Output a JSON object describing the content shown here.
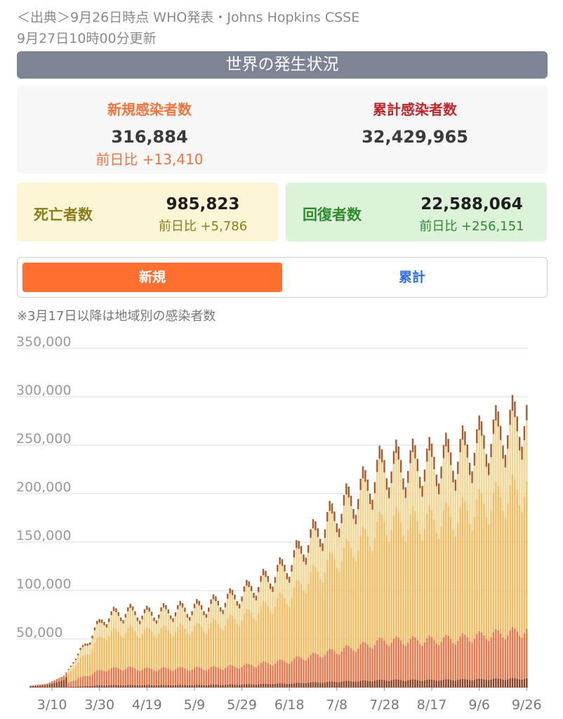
{
  "source": {
    "line1": "＜出典＞9月26日時点 WHO発表・Johns Hopkins CSSE",
    "line2": "9月27日10時00分更新"
  },
  "banner": "世界の発生状況",
  "summary": {
    "new_cases": {
      "label": "新規感染者数",
      "value": "316,884",
      "diff": "前日比 +13,410"
    },
    "total_cases": {
      "label": "累計感染者数",
      "value": "32,429,965"
    },
    "deaths": {
      "label": "死亡者数",
      "value": "985,823",
      "diff": "前日比 +5,786"
    },
    "recovered": {
      "label": "回復者数",
      "value": "22,588,064",
      "diff": "前日比 +256,151"
    }
  },
  "tabs": {
    "new": "新規",
    "cumulative": "累計",
    "active": "new"
  },
  "note": "※3月17日以降は地域別の感染者数",
  "colors": {
    "banner": "#7f8495",
    "orange": "#f0743b",
    "red": "#c0252b",
    "deaths_bg": "#fdf6d6",
    "deaths_text": "#8b7d1a",
    "recovered_bg": "#dcf3da",
    "recovered_text": "#2e8b2e",
    "tab_active": "#ff6f30",
    "tab_inactive_text": "#2a6fe0"
  },
  "chart_data": {
    "type": "bar",
    "stacked": true,
    "x_start": "3/1",
    "x_end": "9/26",
    "xticks": [
      "3/10",
      "3/30",
      "4/19",
      "5/9",
      "5/29",
      "6/18",
      "7/8",
      "7/28",
      "8/17",
      "9/6",
      "9/26"
    ],
    "yticks": [
      "50,000",
      "100,000",
      "150,000",
      "200,000",
      "250,000",
      "300,000",
      "350,000"
    ],
    "ylim": [
      0,
      350000
    ],
    "grid": true,
    "series_colors": [
      "#8a3d1f",
      "#ef7244",
      "#f6b95a",
      "#f2d48f",
      "#a85a2d"
    ],
    "totals_keypoints": [
      [
        "3/1",
        2000
      ],
      [
        "3/8",
        4000
      ],
      [
        "3/15",
        12000
      ],
      [
        "3/20",
        30000
      ],
      [
        "3/25",
        50000
      ],
      [
        "4/1",
        75000
      ],
      [
        "4/10",
        82000
      ],
      [
        "4/19",
        80000
      ],
      [
        "5/1",
        85000
      ],
      [
        "5/9",
        87000
      ],
      [
        "5/20",
        95000
      ],
      [
        "5/29",
        105000
      ],
      [
        "6/10",
        125000
      ],
      [
        "6/18",
        140000
      ],
      [
        "6/25",
        165000
      ],
      [
        "7/8",
        200000
      ],
      [
        "7/20",
        230000
      ],
      [
        "7/28",
        255000
      ],
      [
        "8/5",
        255000
      ],
      [
        "8/17",
        258000
      ],
      [
        "8/27",
        265000
      ],
      [
        "9/6",
        280000
      ],
      [
        "9/16",
        295000
      ],
      [
        "9/26",
        310000
      ]
    ],
    "last_day_total": 316884
  }
}
